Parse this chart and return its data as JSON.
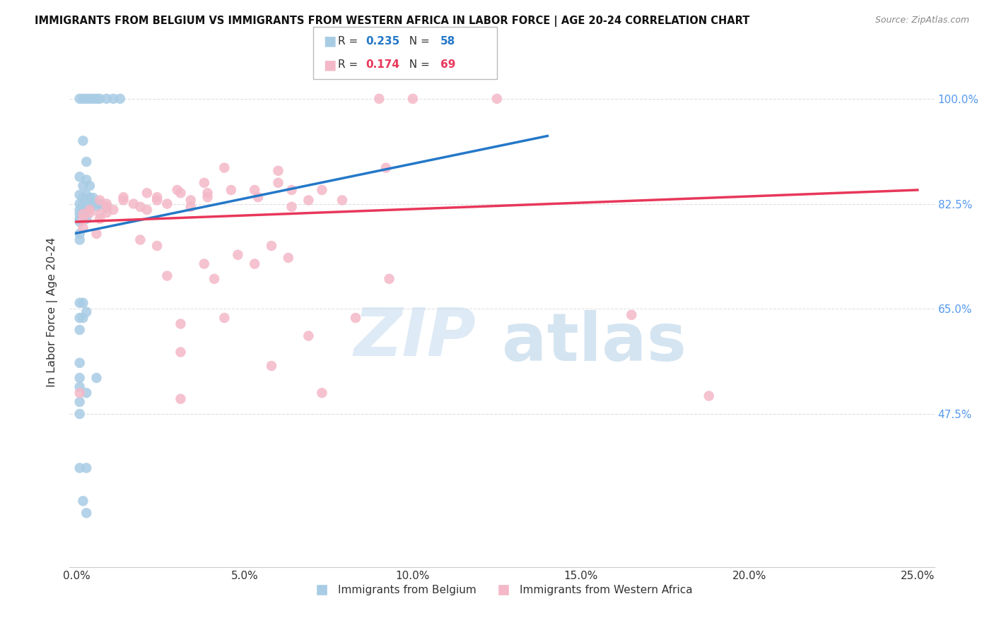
{
  "title": "IMMIGRANTS FROM BELGIUM VS IMMIGRANTS FROM WESTERN AFRICA IN LABOR FORCE | AGE 20-24 CORRELATION CHART",
  "source": "Source: ZipAtlas.com",
  "ylabel": "In Labor Force | Age 20-24",
  "x_ticks": [
    "0.0%",
    "5.0%",
    "10.0%",
    "15.0%",
    "20.0%",
    "25.0%"
  ],
  "x_tick_vals": [
    0.0,
    0.05,
    0.1,
    0.15,
    0.2,
    0.25
  ],
  "y_ticks_right": [
    "100.0%",
    "82.5%",
    "65.0%",
    "47.5%"
  ],
  "y_tick_vals": [
    1.0,
    0.825,
    0.65,
    0.475
  ],
  "xlim": [
    -0.002,
    0.255
  ],
  "ylim": [
    0.22,
    1.07
  ],
  "legend_blue_label": "Immigrants from Belgium",
  "legend_pink_label": "Immigrants from Western Africa",
  "R_blue": 0.235,
  "N_blue": 58,
  "R_pink": 0.174,
  "N_pink": 69,
  "blue_color": "#a8cce4",
  "pink_color": "#f4b8c8",
  "trend_blue": "#2478c8",
  "trend_pink": "#e8375a",
  "blue_scatter": [
    [
      0.001,
      1.0
    ],
    [
      0.002,
      1.0
    ],
    [
      0.003,
      1.0
    ],
    [
      0.004,
      1.0
    ],
    [
      0.005,
      1.0
    ],
    [
      0.006,
      1.0
    ],
    [
      0.007,
      1.0
    ],
    [
      0.009,
      1.0
    ],
    [
      0.011,
      1.0
    ],
    [
      0.013,
      1.0
    ],
    [
      0.002,
      0.93
    ],
    [
      0.003,
      0.895
    ],
    [
      0.001,
      0.87
    ],
    [
      0.003,
      0.865
    ],
    [
      0.002,
      0.855
    ],
    [
      0.004,
      0.855
    ],
    [
      0.001,
      0.84
    ],
    [
      0.003,
      0.84
    ],
    [
      0.002,
      0.835
    ],
    [
      0.004,
      0.835
    ],
    [
      0.005,
      0.835
    ],
    [
      0.001,
      0.825
    ],
    [
      0.002,
      0.825
    ],
    [
      0.003,
      0.825
    ],
    [
      0.005,
      0.825
    ],
    [
      0.006,
      0.825
    ],
    [
      0.007,
      0.825
    ],
    [
      0.001,
      0.815
    ],
    [
      0.002,
      0.815
    ],
    [
      0.003,
      0.815
    ],
    [
      0.001,
      0.808
    ],
    [
      0.002,
      0.808
    ],
    [
      0.006,
      0.82
    ],
    [
      0.009,
      0.818
    ],
    [
      0.001,
      0.8
    ],
    [
      0.002,
      0.8
    ],
    [
      0.003,
      0.8
    ],
    [
      0.001,
      0.795
    ],
    [
      0.001,
      0.775
    ],
    [
      0.001,
      0.765
    ],
    [
      0.001,
      0.66
    ],
    [
      0.002,
      0.66
    ],
    [
      0.003,
      0.645
    ],
    [
      0.001,
      0.635
    ],
    [
      0.002,
      0.635
    ],
    [
      0.001,
      0.615
    ],
    [
      0.001,
      0.56
    ],
    [
      0.001,
      0.535
    ],
    [
      0.001,
      0.52
    ],
    [
      0.006,
      0.535
    ],
    [
      0.003,
      0.51
    ],
    [
      0.001,
      0.495
    ],
    [
      0.001,
      0.475
    ],
    [
      0.001,
      0.385
    ],
    [
      0.003,
      0.385
    ],
    [
      0.002,
      0.33
    ],
    [
      0.003,
      0.31
    ]
  ],
  "pink_scatter": [
    [
      0.09,
      1.0
    ],
    [
      0.1,
      1.0
    ],
    [
      0.125,
      1.0
    ],
    [
      0.044,
      0.885
    ],
    [
      0.06,
      0.88
    ],
    [
      0.092,
      0.885
    ],
    [
      0.038,
      0.86
    ],
    [
      0.06,
      0.86
    ],
    [
      0.03,
      0.848
    ],
    [
      0.046,
      0.848
    ],
    [
      0.053,
      0.848
    ],
    [
      0.064,
      0.848
    ],
    [
      0.073,
      0.848
    ],
    [
      0.021,
      0.843
    ],
    [
      0.031,
      0.843
    ],
    [
      0.039,
      0.843
    ],
    [
      0.014,
      0.836
    ],
    [
      0.024,
      0.836
    ],
    [
      0.039,
      0.836
    ],
    [
      0.054,
      0.836
    ],
    [
      0.007,
      0.831
    ],
    [
      0.014,
      0.831
    ],
    [
      0.024,
      0.831
    ],
    [
      0.034,
      0.831
    ],
    [
      0.069,
      0.831
    ],
    [
      0.079,
      0.831
    ],
    [
      0.009,
      0.825
    ],
    [
      0.017,
      0.825
    ],
    [
      0.027,
      0.825
    ],
    [
      0.009,
      0.82
    ],
    [
      0.019,
      0.82
    ],
    [
      0.034,
      0.82
    ],
    [
      0.064,
      0.82
    ],
    [
      0.004,
      0.815
    ],
    [
      0.011,
      0.815
    ],
    [
      0.021,
      0.815
    ],
    [
      0.004,
      0.81
    ],
    [
      0.009,
      0.81
    ],
    [
      0.002,
      0.8
    ],
    [
      0.007,
      0.8
    ],
    [
      0.002,
      0.785
    ],
    [
      0.006,
      0.775
    ],
    [
      0.019,
      0.765
    ],
    [
      0.024,
      0.755
    ],
    [
      0.058,
      0.755
    ],
    [
      0.048,
      0.74
    ],
    [
      0.038,
      0.725
    ],
    [
      0.053,
      0.725
    ],
    [
      0.063,
      0.735
    ],
    [
      0.027,
      0.705
    ],
    [
      0.041,
      0.7
    ],
    [
      0.093,
      0.7
    ],
    [
      0.044,
      0.635
    ],
    [
      0.083,
      0.635
    ],
    [
      0.031,
      0.625
    ],
    [
      0.069,
      0.605
    ],
    [
      0.031,
      0.578
    ],
    [
      0.058,
      0.555
    ],
    [
      0.073,
      0.51
    ],
    [
      0.031,
      0.5
    ],
    [
      0.001,
      0.51
    ],
    [
      0.165,
      0.64
    ],
    [
      0.188,
      0.505
    ],
    [
      0.002,
      0.808
    ],
    [
      0.007,
      0.808
    ]
  ],
  "blue_trend_x": [
    0.0,
    0.14
  ],
  "blue_trend_y": [
    0.776,
    0.938
  ],
  "pink_trend_x": [
    0.0,
    0.25
  ],
  "pink_trend_y": [
    0.795,
    0.848
  ],
  "watermark_zip": "ZIP",
  "watermark_atlas": "atlas",
  "background_color": "#ffffff",
  "grid_color": "#e0e0e0",
  "title_color": "#111111",
  "label_color": "#333333",
  "tick_color_right": "#5599ee",
  "tick_color_bottom_left": "#333333",
  "tick_color_x_right": "#5599ee"
}
